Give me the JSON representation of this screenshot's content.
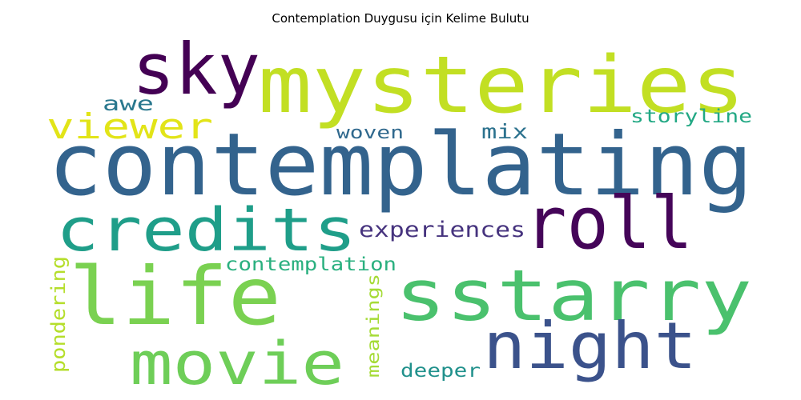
{
  "title": "Contemplation Duygusu için Kelime Bulutu",
  "words": [
    {
      "text": "contemplating",
      "color": "#33638d"
    },
    {
      "text": "mysteries",
      "color": "#c2df23"
    },
    {
      "text": "sky",
      "color": "#440154"
    },
    {
      "text": "sstarry",
      "color": "#4ac16d"
    },
    {
      "text": "life",
      "color": "#7ad151"
    },
    {
      "text": "credits",
      "color": "#1f9e89"
    },
    {
      "text": "roll",
      "color": "#450559"
    },
    {
      "text": "night",
      "color": "#3b528b"
    },
    {
      "text": "movie",
      "color": "#6ece58"
    },
    {
      "text": "viewer",
      "color": "#e2e418"
    },
    {
      "text": "experiences",
      "color": "#46337e"
    },
    {
      "text": "contemplation",
      "color": "#2ab07f"
    },
    {
      "text": "storyline",
      "color": "#22a884"
    },
    {
      "text": "awe",
      "color": "#2a788e"
    },
    {
      "text": "woven",
      "color": "#30698e"
    },
    {
      "text": "mix",
      "color": "#2c728e"
    },
    {
      "text": "deeper",
      "color": "#21918c"
    },
    {
      "text": "pondering",
      "color": "#b5de2b"
    },
    {
      "text": "meanings",
      "color": "#a5db36"
    }
  ]
}
